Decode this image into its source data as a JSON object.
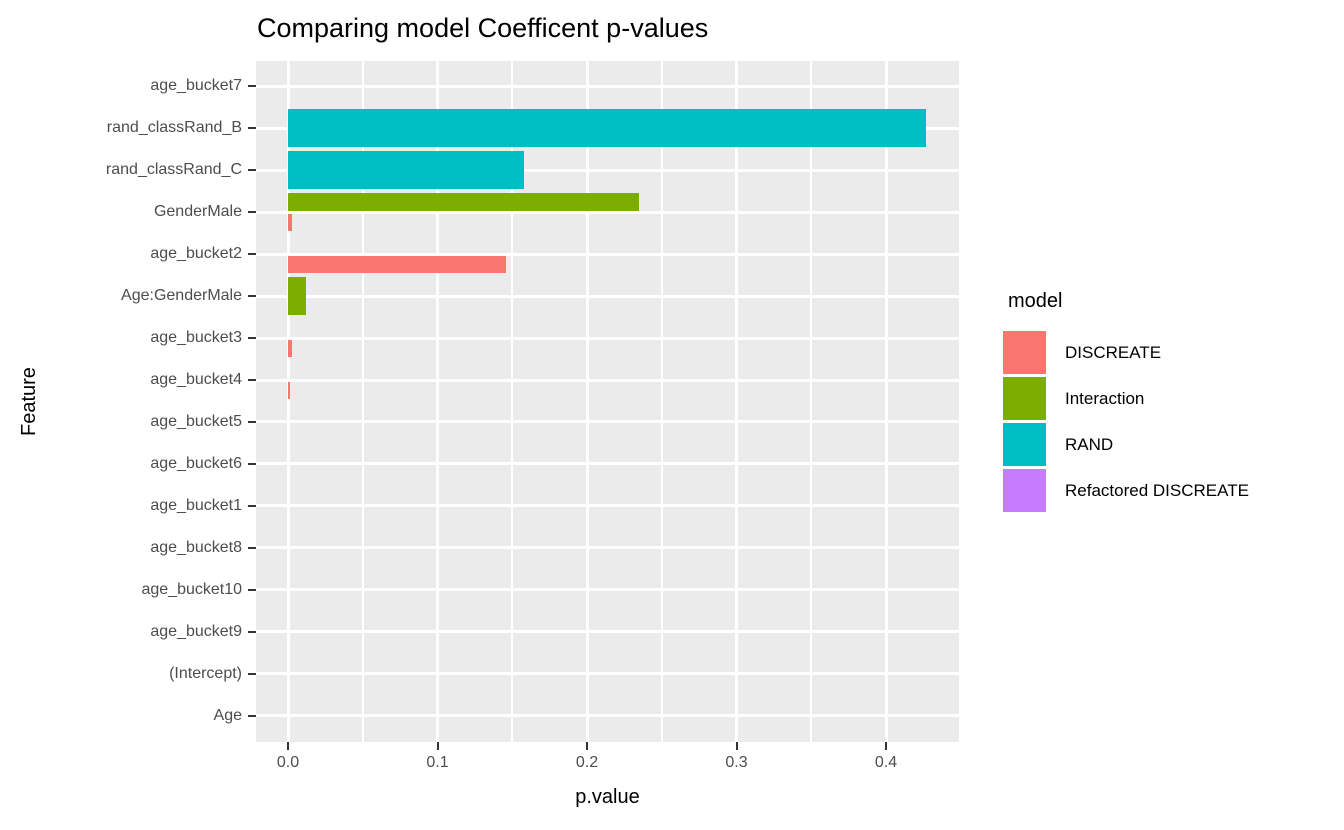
{
  "title": "Comparing model Coefficent p-values",
  "axes": {
    "x_title": "p.value",
    "y_title": "Feature",
    "x_tick_labels": [
      "0.0",
      "0.1",
      "0.2",
      "0.3",
      "0.4"
    ]
  },
  "legend": {
    "title": "model",
    "items": [
      {
        "label": "DISCREATE",
        "color": "#F8766D"
      },
      {
        "label": "Interaction",
        "color": "#7CAE00"
      },
      {
        "label": "RAND",
        "color": "#00BFC4"
      },
      {
        "label": "Refactored DISCREATE",
        "color": "#C77CFF"
      }
    ]
  },
  "colors": {
    "panel_background": "#EBEBEB",
    "gridline": "#FFFFFF",
    "tick_mark": "#333333",
    "tick_label": "#4D4D4D",
    "DISCREATE": "#F8766D",
    "Interaction": "#7CAE00",
    "RAND": "#00BFC4",
    "Refactored DISCREATE": "#C77CFF"
  },
  "chart_data": {
    "type": "bar",
    "orientation": "horizontal",
    "title": "Comparing model Coefficent p-values",
    "xlabel": "p.value",
    "ylabel": "Feature",
    "xlim": [
      -0.021,
      0.448
    ],
    "x_major_ticks": [
      0,
      0.1,
      0.2,
      0.3,
      0.4
    ],
    "x_minor_gridlines": [
      0.05,
      0.15,
      0.25,
      0.35
    ],
    "grid": true,
    "legend_position": "right",
    "categories": [
      "age_bucket7",
      "rand_classRand_B",
      "rand_classRand_C",
      "GenderMale",
      "age_bucket2",
      "Age:GenderMale",
      "age_bucket3",
      "age_bucket4",
      "age_bucket5",
      "age_bucket6",
      "age_bucket1",
      "age_bucket8",
      "age_bucket10",
      "age_bucket9",
      "(Intercept)",
      "Age"
    ],
    "series": [
      {
        "name": "DISCREATE",
        "color": "#F8766D",
        "values": [
          0,
          0,
          0,
          0.003,
          0.146,
          0,
          0.0025,
          0.0012,
          0,
          0,
          0,
          0,
          0,
          0,
          0,
          0
        ]
      },
      {
        "name": "Interaction",
        "color": "#7CAE00",
        "values": [
          0,
          0,
          0,
          0.235,
          0,
          0.012,
          0,
          0,
          0,
          0,
          0,
          0,
          0,
          0,
          0,
          0
        ]
      },
      {
        "name": "RAND",
        "color": "#00BFC4",
        "values": [
          0,
          0.427,
          0.158,
          0,
          0,
          0,
          0,
          0,
          0,
          0,
          0,
          0,
          0,
          0,
          0,
          0
        ]
      },
      {
        "name": "Refactored DISCREATE",
        "color": "#C77CFF",
        "values": [
          0,
          0,
          0,
          0,
          0,
          0,
          0,
          0,
          0,
          0,
          0,
          0,
          0,
          0,
          0,
          0
        ]
      }
    ],
    "visible_bars": [
      {
        "category": "rand_classRand_B",
        "model": "RAND",
        "value": 0.427,
        "slot": "full"
      },
      {
        "category": "rand_classRand_C",
        "model": "RAND",
        "value": 0.158,
        "slot": "full"
      },
      {
        "category": "GenderMale",
        "model": "Interaction",
        "value": 0.235,
        "slot": "top"
      },
      {
        "category": "GenderMale",
        "model": "DISCREATE",
        "value": 0.003,
        "slot": "bottom"
      },
      {
        "category": "age_bucket2",
        "model": "DISCREATE",
        "value": 0.146,
        "slot": "bottom"
      },
      {
        "category": "Age:GenderMale",
        "model": "Interaction",
        "value": 0.012,
        "slot": "full"
      },
      {
        "category": "age_bucket3",
        "model": "DISCREATE",
        "value": 0.0025,
        "slot": "bottom"
      },
      {
        "category": "age_bucket4",
        "model": "DISCREATE",
        "value": 0.0012,
        "slot": "bottom"
      }
    ]
  }
}
